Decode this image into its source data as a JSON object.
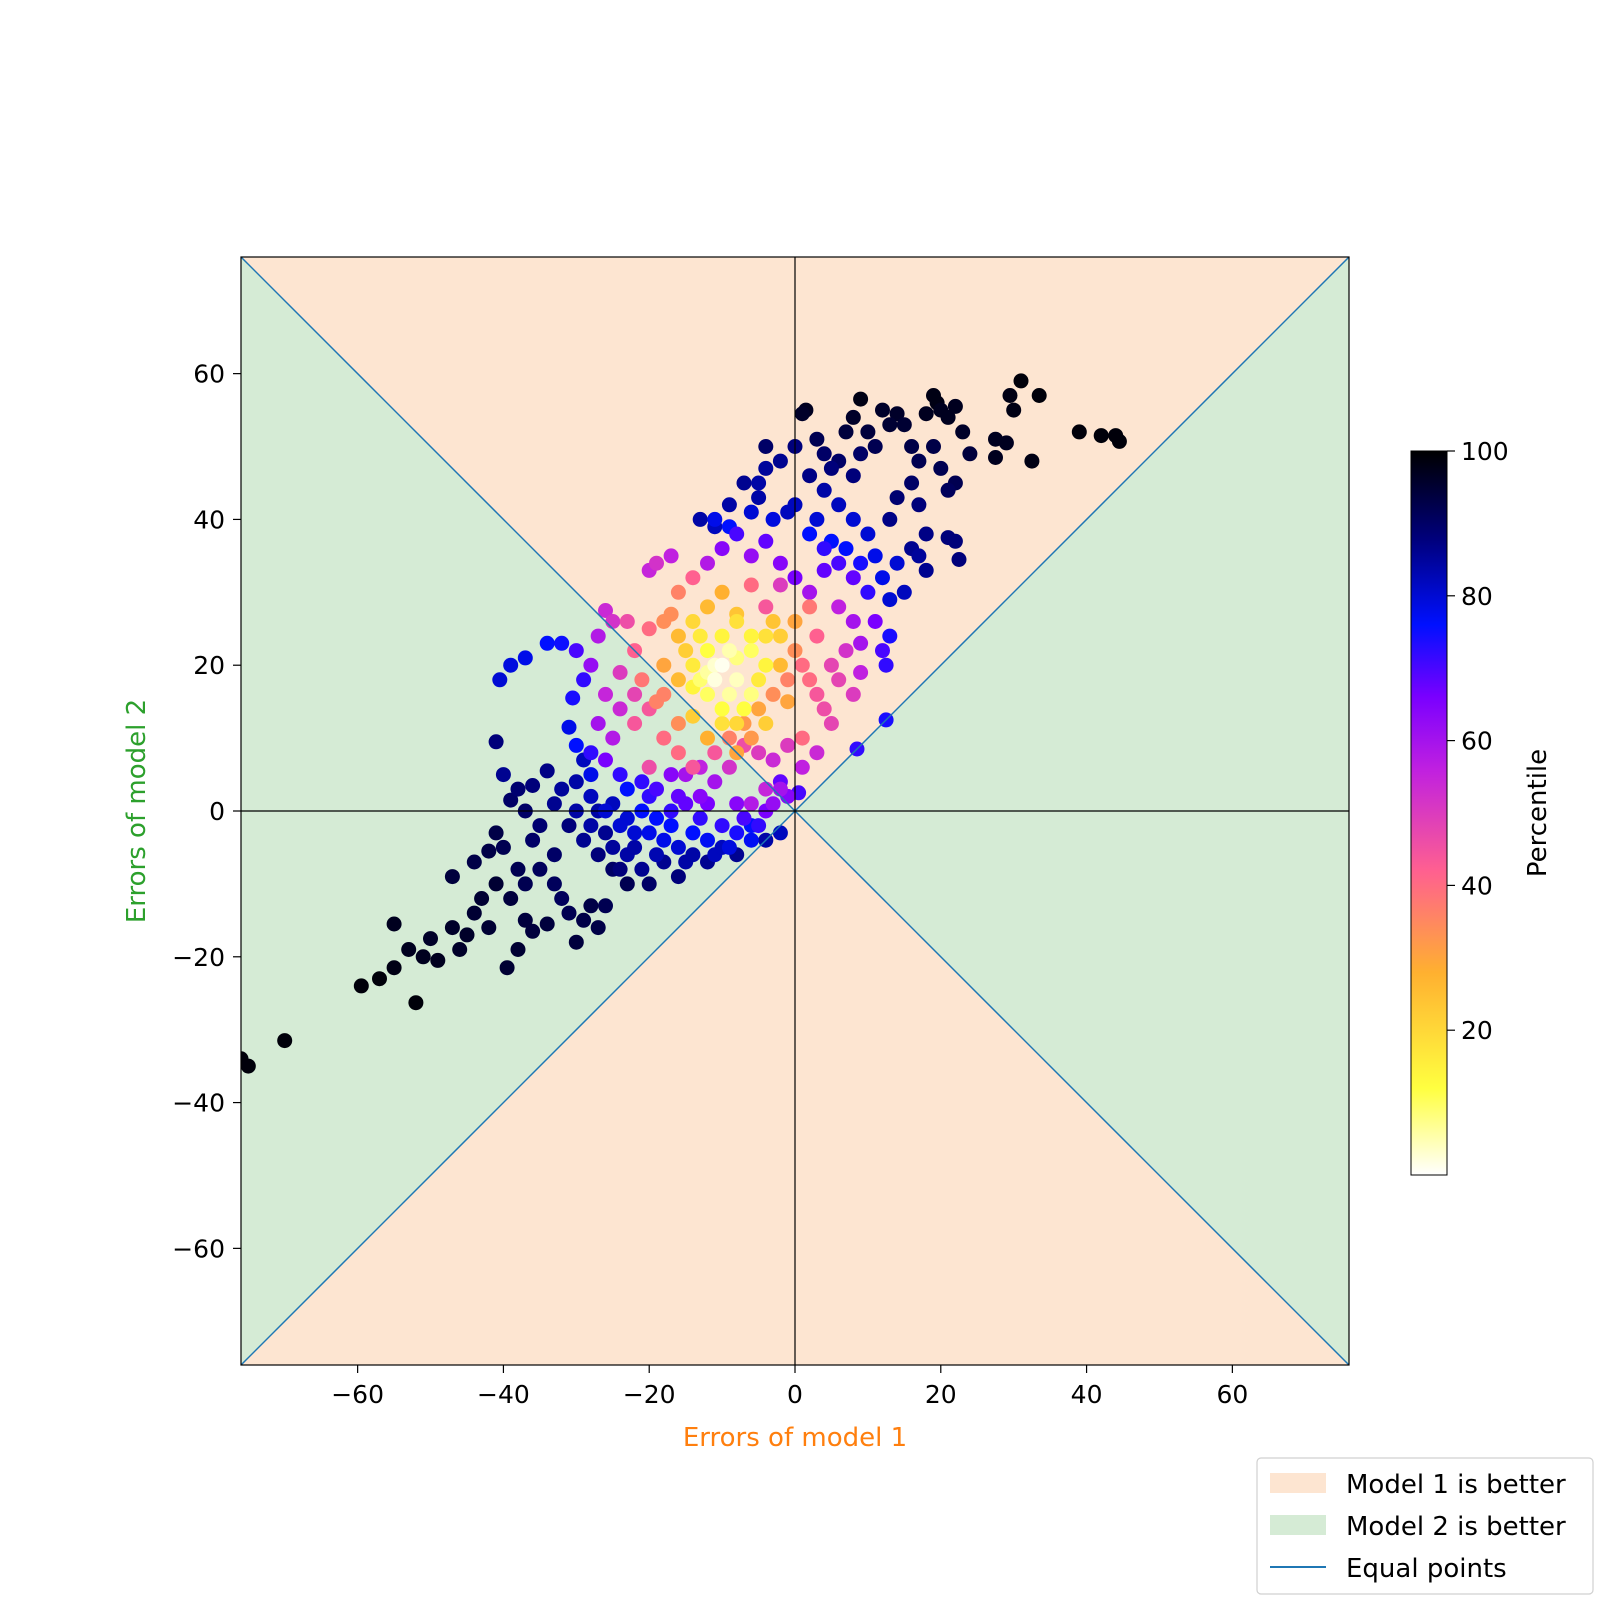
{
  "chart_data": {
    "type": "scatter",
    "xlabel": "Errors of model 1",
    "ylabel": "Errors of model 2",
    "xlim": [
      -76,
      76
    ],
    "ylim": [
      -76,
      76
    ],
    "xticks": [
      -60,
      -40,
      -20,
      0,
      20,
      40,
      60
    ],
    "yticks": [
      -60,
      -40,
      -20,
      0,
      20,
      40,
      60
    ],
    "tick_labels": [
      "−60",
      "−40",
      "−20",
      "0",
      "20",
      "40",
      "60"
    ],
    "grid": false,
    "colors": {
      "xlabel": "#ff7f0e",
      "ylabel": "#2ca02c",
      "model1_region": "#fde5d1",
      "model2_region": "#d5ebd5",
      "equal_line": "#1f77b4"
    },
    "regions": [
      {
        "name": "Model 1 is better",
        "description": "|x| < |y|"
      },
      {
        "name": "Model 2 is better",
        "description": "|y| < |x|"
      }
    ],
    "lines": [
      {
        "name": "Equal points",
        "equation": "y = x and y = -x"
      }
    ],
    "colorbar": {
      "label": "Percentile",
      "range": [
        0,
        100
      ],
      "ticks": [
        20,
        40,
        60,
        80,
        100
      ],
      "colormap": "gnuplot2_r"
    },
    "legend": {
      "placement": "bottom-right",
      "entries": [
        "Model 1 is better",
        "Model 2 is better",
        "Equal points"
      ]
    },
    "points": [
      [
        -76,
        -34,
        99
      ],
      [
        -75,
        -35,
        99
      ],
      [
        -70,
        -31.5,
        99
      ],
      [
        -59.5,
        -24,
        99
      ],
      [
        -57,
        -23,
        99
      ],
      [
        -55,
        -21.5,
        98
      ],
      [
        -52,
        -26.3,
        99
      ],
      [
        -55,
        -15.5,
        97
      ],
      [
        -53,
        -19,
        97
      ],
      [
        -51,
        -20,
        97
      ],
      [
        -49,
        -20.5,
        97
      ],
      [
        -50,
        -17.5,
        96
      ],
      [
        -47,
        -16,
        96
      ],
      [
        -46,
        -19,
        96
      ],
      [
        -45,
        -17,
        96
      ],
      [
        -44,
        -14,
        95
      ],
      [
        -43,
        -12,
        95
      ],
      [
        -42,
        -16,
        95
      ],
      [
        -41,
        -10,
        95
      ],
      [
        -39,
        -12,
        94
      ],
      [
        -38,
        -19,
        95
      ],
      [
        -39.5,
        -21.5,
        95
      ],
      [
        -37,
        -15,
        94
      ],
      [
        -36,
        -16.5,
        94
      ],
      [
        -34,
        -15.5,
        94
      ],
      [
        -30,
        -18,
        94
      ],
      [
        -29,
        -15,
        93
      ],
      [
        -27,
        -16,
        93
      ],
      [
        -28,
        -13,
        93
      ],
      [
        -26,
        -13,
        92
      ],
      [
        -47,
        -9,
        94
      ],
      [
        -44,
        -7,
        93
      ],
      [
        -41,
        -3,
        93
      ],
      [
        -42,
        -5.5,
        93
      ],
      [
        -40,
        -5,
        92
      ],
      [
        -38,
        -8,
        92
      ],
      [
        -37,
        -10,
        92
      ],
      [
        -35,
        -8,
        91
      ],
      [
        -33,
        -10,
        91
      ],
      [
        -32,
        -12,
        91
      ],
      [
        -31,
        -14,
        92
      ],
      [
        -36,
        -4,
        90
      ],
      [
        -39,
        1.5,
        90
      ],
      [
        -38,
        3,
        89
      ],
      [
        -36,
        3.5,
        88
      ],
      [
        -34,
        5.5,
        87
      ],
      [
        -33,
        1,
        86
      ],
      [
        -32,
        3,
        85
      ],
      [
        -30,
        4,
        84
      ],
      [
        -29,
        7,
        82
      ],
      [
        -28,
        2,
        82
      ],
      [
        -27,
        0,
        84
      ],
      [
        -26,
        -3,
        86
      ],
      [
        -25,
        -5,
        85
      ],
      [
        -24,
        -8,
        88
      ],
      [
        -23,
        -6,
        84
      ],
      [
        -22,
        -3,
        80
      ],
      [
        -21,
        -8,
        86
      ],
      [
        -20,
        -10,
        90
      ],
      [
        -19,
        -6,
        83
      ],
      [
        -18,
        -4,
        78
      ],
      [
        -17,
        -2,
        76
      ],
      [
        -16,
        -5,
        80
      ],
      [
        -15,
        -7,
        84
      ],
      [
        -14,
        -3,
        76
      ],
      [
        -13,
        -1,
        72
      ],
      [
        -12,
        -4,
        77
      ],
      [
        -11,
        -6,
        82
      ],
      [
        -10,
        -2,
        72
      ],
      [
        -9,
        -5,
        79
      ],
      [
        -8,
        -3,
        74
      ],
      [
        -7,
        -1,
        70
      ],
      [
        -6,
        -4,
        77
      ],
      [
        -5,
        -2,
        72
      ],
      [
        -4,
        0,
        66
      ],
      [
        -3,
        1,
        62
      ],
      [
        -2,
        3,
        60
      ],
      [
        -1,
        2,
        64
      ],
      [
        -4,
        3,
        55
      ],
      [
        -6,
        1,
        58
      ],
      [
        -41,
        9.5,
        88
      ],
      [
        -40,
        5,
        86
      ],
      [
        -40.5,
        18,
        80
      ],
      [
        -39,
        20,
        79
      ],
      [
        -37,
        21,
        78
      ],
      [
        -34,
        23,
        76
      ],
      [
        -32,
        23,
        75
      ],
      [
        -30,
        22,
        70
      ],
      [
        -29,
        18,
        72
      ],
      [
        -30.5,
        15.5,
        74
      ],
      [
        -28,
        20,
        62
      ],
      [
        -27,
        24,
        58
      ],
      [
        -26,
        27.5,
        54
      ],
      [
        -25,
        26,
        52
      ],
      [
        -31,
        11.5,
        78
      ],
      [
        -30,
        9,
        76
      ],
      [
        -28,
        8,
        72
      ],
      [
        -27,
        12,
        60
      ],
      [
        -26,
        16,
        55
      ],
      [
        -25,
        10,
        58
      ],
      [
        -24,
        19,
        50
      ],
      [
        -23,
        26,
        46
      ],
      [
        -22,
        22,
        42
      ],
      [
        -21,
        18,
        38
      ],
      [
        -20,
        25,
        40
      ],
      [
        -19,
        15,
        36
      ],
      [
        -18,
        20,
        30
      ],
      [
        -17,
        27,
        34
      ],
      [
        -16,
        12,
        34
      ],
      [
        -15,
        22,
        22
      ],
      [
        -14,
        17,
        14
      ],
      [
        -13,
        24,
        16
      ],
      [
        -12,
        19,
        6
      ],
      [
        -11,
        18,
        2
      ],
      [
        -10,
        20,
        1
      ],
      [
        -9,
        16,
        6
      ],
      [
        -8,
        21,
        8
      ],
      [
        -7,
        14,
        12
      ],
      [
        -6,
        24,
        14
      ],
      [
        -5,
        18,
        16
      ],
      [
        -4,
        12,
        22
      ],
      [
        -3,
        26,
        24
      ],
      [
        -2,
        20,
        26
      ],
      [
        -1,
        15,
        30
      ],
      [
        0,
        22,
        34
      ],
      [
        1,
        10,
        40
      ],
      [
        2,
        18,
        40
      ],
      [
        3,
        24,
        42
      ],
      [
        4,
        14,
        46
      ],
      [
        5,
        20,
        48
      ],
      [
        -16,
        8,
        40
      ],
      [
        -14,
        6,
        44
      ],
      [
        -12,
        10,
        28
      ],
      [
        -10,
        12,
        18
      ],
      [
        -8,
        8,
        30
      ],
      [
        -6,
        10,
        32
      ],
      [
        -18,
        10,
        40
      ],
      [
        -20,
        6,
        46
      ],
      [
        -22,
        12,
        44
      ],
      [
        -16,
        30,
        36
      ],
      [
        -14,
        32,
        42
      ],
      [
        -12,
        28,
        26
      ],
      [
        -10,
        30,
        28
      ],
      [
        -8,
        27,
        24
      ],
      [
        -6,
        31,
        40
      ],
      [
        -4,
        28,
        44
      ],
      [
        -2,
        31,
        50
      ],
      [
        -19,
        34,
        52
      ],
      [
        -17,
        35,
        56
      ],
      [
        -20,
        33,
        55
      ],
      [
        -12,
        34,
        58
      ],
      [
        -10,
        36,
        64
      ],
      [
        -8,
        38,
        70
      ],
      [
        -6,
        35,
        62
      ],
      [
        -4,
        37,
        68
      ],
      [
        -2,
        34,
        64
      ],
      [
        0,
        32,
        66
      ],
      [
        2,
        30,
        60
      ],
      [
        4,
        33,
        68
      ],
      [
        6,
        28,
        56
      ],
      [
        -11,
        40,
        78
      ],
      [
        -9,
        39,
        76
      ],
      [
        -6,
        41,
        80
      ],
      [
        -3,
        40,
        79
      ],
      [
        0,
        42,
        82
      ],
      [
        2,
        38,
        76
      ],
      [
        4,
        36,
        72
      ],
      [
        6,
        34,
        70
      ],
      [
        8,
        32,
        68
      ],
      [
        8,
        26,
        60
      ],
      [
        7,
        22,
        52
      ],
      [
        6,
        18,
        48
      ],
      [
        8,
        16,
        50
      ],
      [
        9,
        19,
        56
      ],
      [
        9,
        23,
        60
      ],
      [
        11,
        26,
        66
      ],
      [
        12,
        22,
        70
      ],
      [
        12.5,
        20,
        72
      ],
      [
        13,
        24,
        74
      ],
      [
        12.5,
        12.5,
        74
      ],
      [
        8.5,
        8.5,
        72
      ],
      [
        0.5,
        2.5,
        70
      ],
      [
        -2,
        4,
        68
      ],
      [
        1,
        6,
        56
      ],
      [
        3,
        8,
        54
      ],
      [
        -5,
        45,
        84
      ],
      [
        -4,
        47,
        85
      ],
      [
        -2,
        48,
        86
      ],
      [
        0,
        50,
        88
      ],
      [
        1,
        54.5,
        96
      ],
      [
        1.5,
        55,
        97
      ],
      [
        3,
        51,
        92
      ],
      [
        5,
        47,
        88
      ],
      [
        2,
        46,
        87
      ],
      [
        4,
        44,
        84
      ],
      [
        6,
        42,
        82
      ],
      [
        8,
        40,
        80
      ],
      [
        10,
        38,
        80
      ],
      [
        11,
        35,
        78
      ],
      [
        12,
        32,
        78
      ],
      [
        14,
        34,
        80
      ],
      [
        15,
        30,
        82
      ],
      [
        13,
        29,
        80
      ],
      [
        8,
        46,
        88
      ],
      [
        9,
        49,
        90
      ],
      [
        7,
        52,
        94
      ],
      [
        8,
        54,
        96
      ],
      [
        9,
        56.5,
        98
      ],
      [
        10,
        52,
        94
      ],
      [
        11,
        50,
        92
      ],
      [
        12,
        55,
        96
      ],
      [
        13,
        53,
        95
      ],
      [
        14,
        54.5,
        96
      ],
      [
        15,
        53,
        95
      ],
      [
        16,
        50,
        93
      ],
      [
        17,
        48,
        92
      ],
      [
        18,
        54.5,
        97
      ],
      [
        19,
        57,
        98
      ],
      [
        19.5,
        56,
        98
      ],
      [
        20,
        55,
        97
      ],
      [
        21,
        54,
        97
      ],
      [
        22,
        55.5,
        97
      ],
      [
        19,
        50,
        93
      ],
      [
        16,
        45,
        90
      ],
      [
        14,
        43,
        89
      ],
      [
        13,
        40,
        87
      ],
      [
        17,
        42,
        88
      ],
      [
        18,
        38,
        87
      ],
      [
        16,
        36,
        86
      ],
      [
        18,
        33,
        86
      ],
      [
        17,
        35,
        85
      ],
      [
        21,
        37.5,
        88
      ],
      [
        22,
        37,
        88
      ],
      [
        22.5,
        34.5,
        88
      ],
      [
        22,
        45,
        92
      ],
      [
        21,
        44,
        91
      ],
      [
        20,
        47,
        92
      ],
      [
        23,
        52,
        96
      ],
      [
        24,
        49,
        94
      ],
      [
        27.5,
        51,
        97
      ],
      [
        27.5,
        48.5,
        97
      ],
      [
        29,
        50.5,
        97
      ],
      [
        30,
        55,
        98
      ],
      [
        29.5,
        57,
        98
      ],
      [
        31,
        59,
        99
      ],
      [
        33.5,
        57,
        99
      ],
      [
        32.5,
        48,
        98
      ],
      [
        39,
        52,
        99
      ],
      [
        42,
        51.5,
        99
      ],
      [
        44,
        51.5,
        99
      ],
      [
        44.5,
        50.7,
        99
      ],
      [
        6,
        48,
        90
      ],
      [
        4,
        49,
        90
      ],
      [
        -4,
        50,
        90
      ],
      [
        -7,
        45,
        86
      ],
      [
        -9,
        42,
        84
      ],
      [
        -11,
        39,
        82
      ],
      [
        -13,
        40,
        84
      ],
      [
        -5,
        43,
        84
      ],
      [
        -1,
        41,
        82
      ],
      [
        3,
        40,
        80
      ],
      [
        5,
        37,
        76
      ],
      [
        7,
        36,
        76
      ],
      [
        9,
        34,
        74
      ],
      [
        10,
        30,
        72
      ],
      [
        -7,
        9,
        46
      ],
      [
        -5,
        8,
        50
      ],
      [
        -3,
        7,
        54
      ],
      [
        -1,
        9,
        50
      ],
      [
        -9,
        6,
        52
      ],
      [
        -11,
        4,
        60
      ],
      [
        -13,
        2,
        64
      ],
      [
        -15,
        1,
        68
      ],
      [
        -17,
        0,
        72
      ],
      [
        -19,
        -1,
        76
      ],
      [
        -21,
        0,
        76
      ],
      [
        -23,
        -1,
        80
      ],
      [
        -25,
        1,
        82
      ],
      [
        -23,
        3,
        76
      ],
      [
        -21,
        4,
        72
      ],
      [
        -19,
        3,
        70
      ],
      [
        -17,
        5,
        64
      ],
      [
        -15,
        5,
        60
      ],
      [
        -13,
        6,
        56
      ],
      [
        -11,
        8,
        44
      ],
      [
        -9,
        10,
        36
      ],
      [
        -7,
        12,
        32
      ],
      [
        -5,
        14,
        30
      ],
      [
        -3,
        16,
        34
      ],
      [
        -1,
        18,
        36
      ],
      [
        1,
        20,
        40
      ],
      [
        3,
        16,
        44
      ],
      [
        5,
        12,
        48
      ],
      [
        -24,
        14,
        54
      ],
      [
        -22,
        16,
        48
      ],
      [
        -20,
        14,
        44
      ],
      [
        -18,
        16,
        36
      ],
      [
        -16,
        18,
        26
      ],
      [
        -14,
        20,
        16
      ],
      [
        -12,
        22,
        12
      ],
      [
        -10,
        24,
        14
      ],
      [
        -8,
        26,
        18
      ],
      [
        -6,
        22,
        10
      ],
      [
        -4,
        20,
        14
      ],
      [
        -2,
        24,
        22
      ],
      [
        0,
        26,
        30
      ],
      [
        2,
        28,
        38
      ],
      [
        -18,
        26,
        34
      ],
      [
        -16,
        24,
        26
      ],
      [
        -14,
        26,
        20
      ],
      [
        -12,
        16,
        10
      ],
      [
        -10,
        14,
        12
      ],
      [
        -8,
        18,
        4
      ],
      [
        -6,
        16,
        8
      ],
      [
        -4,
        24,
        18
      ],
      [
        -11,
        20,
        3
      ],
      [
        -9,
        22,
        5
      ],
      [
        -13,
        18,
        9
      ],
      [
        -8,
        12,
        20
      ],
      [
        -14,
        13,
        22
      ],
      [
        -31,
        -2,
        88
      ],
      [
        -29,
        -4,
        86
      ],
      [
        -27,
        -6,
        88
      ],
      [
        -25,
        -8,
        90
      ],
      [
        -23,
        -10,
        92
      ],
      [
        -33,
        -6,
        90
      ],
      [
        -35,
        -2,
        89
      ],
      [
        -37,
        0,
        90
      ],
      [
        -30,
        0,
        84
      ],
      [
        -28,
        -2,
        84
      ],
      [
        -26,
        0,
        80
      ],
      [
        -24,
        -2,
        80
      ],
      [
        -22,
        -5,
        84
      ],
      [
        -20,
        -3,
        78
      ],
      [
        -18,
        -7,
        86
      ],
      [
        -16,
        -9,
        88
      ],
      [
        -14,
        -6,
        84
      ],
      [
        -12,
        -7,
        86
      ],
      [
        -10,
        -5,
        82
      ],
      [
        -8,
        -6,
        86
      ],
      [
        -6,
        -2,
        76
      ],
      [
        -4,
        -4,
        84
      ],
      [
        -2,
        -3,
        82
      ],
      [
        -8,
        1,
        64
      ],
      [
        -12,
        1,
        66
      ],
      [
        -16,
        2,
        68
      ],
      [
        -20,
        2,
        72
      ],
      [
        -24,
        5,
        72
      ],
      [
        -28,
        5,
        78
      ],
      [
        -26,
        7,
        66
      ]
    ]
  }
}
